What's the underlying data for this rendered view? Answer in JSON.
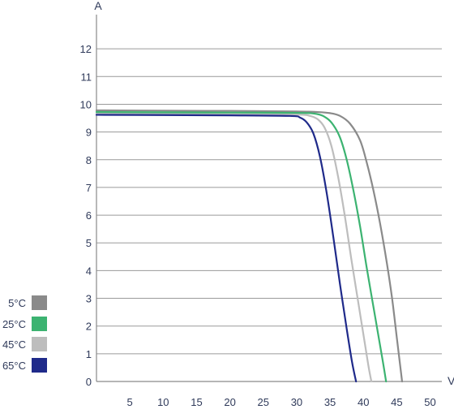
{
  "chart_data": {
    "type": "line",
    "title": "",
    "xlabel": "V",
    "ylabel": "A",
    "xlim": [
      0,
      52
    ],
    "ylim": [
      0,
      13
    ],
    "x_ticks": [
      5,
      10,
      15,
      20,
      25,
      30,
      35,
      40,
      45,
      50
    ],
    "y_ticks": [
      0,
      1,
      2,
      3,
      4,
      5,
      6,
      7,
      8,
      9,
      10,
      11,
      12
    ],
    "grid": true,
    "legend_position": "left-bottom",
    "series": [
      {
        "name": "5°C",
        "color": "#8a8a8a",
        "points": [
          [
            0,
            9.78
          ],
          [
            10,
            9.77
          ],
          [
            20,
            9.76
          ],
          [
            30,
            9.74
          ],
          [
            33,
            9.72
          ],
          [
            35,
            9.68
          ],
          [
            36.5,
            9.58
          ],
          [
            38,
            9.3
          ],
          [
            39.5,
            8.7
          ],
          [
            40.5,
            7.9
          ],
          [
            41.5,
            6.9
          ],
          [
            42.5,
            5.7
          ],
          [
            43.5,
            4.3
          ],
          [
            44.3,
            3.0
          ],
          [
            45,
            1.6
          ],
          [
            45.5,
            0.6
          ],
          [
            45.8,
            0
          ]
        ]
      },
      {
        "name": "25°C",
        "color": "#3cb371",
        "points": [
          [
            0,
            9.72
          ],
          [
            10,
            9.71
          ],
          [
            20,
            9.7
          ],
          [
            30,
            9.69
          ],
          [
            33,
            9.65
          ],
          [
            34.5,
            9.5
          ],
          [
            35.5,
            9.25
          ],
          [
            36.5,
            8.8
          ],
          [
            37.5,
            8.0
          ],
          [
            38.5,
            6.9
          ],
          [
            39.5,
            5.6
          ],
          [
            40.5,
            4.1
          ],
          [
            41.5,
            2.7
          ],
          [
            42.5,
            1.3
          ],
          [
            43,
            0.6
          ],
          [
            43.4,
            0
          ]
        ]
      },
      {
        "name": "45°C",
        "color": "#bdbdbd",
        "points": [
          [
            0,
            9.67
          ],
          [
            10,
            9.66
          ],
          [
            20,
            9.65
          ],
          [
            30,
            9.63
          ],
          [
            32,
            9.58
          ],
          [
            33.2,
            9.45
          ],
          [
            34.2,
            9.15
          ],
          [
            35.2,
            8.5
          ],
          [
            36.2,
            7.4
          ],
          [
            37.2,
            6.0
          ],
          [
            38.2,
            4.4
          ],
          [
            39.2,
            2.9
          ],
          [
            40.2,
            1.4
          ],
          [
            40.8,
            0.5
          ],
          [
            41.2,
            0
          ]
        ]
      },
      {
        "name": "65°C",
        "color": "#1f2a8a",
        "points": [
          [
            0,
            9.62
          ],
          [
            10,
            9.61
          ],
          [
            20,
            9.6
          ],
          [
            29,
            9.58
          ],
          [
            30.5,
            9.52
          ],
          [
            31.5,
            9.35
          ],
          [
            32.5,
            8.95
          ],
          [
            33.5,
            8.1
          ],
          [
            34.5,
            6.8
          ],
          [
            35.5,
            5.2
          ],
          [
            36.5,
            3.5
          ],
          [
            37.5,
            1.9
          ],
          [
            38.3,
            0.7
          ],
          [
            38.9,
            0
          ]
        ]
      }
    ]
  }
}
